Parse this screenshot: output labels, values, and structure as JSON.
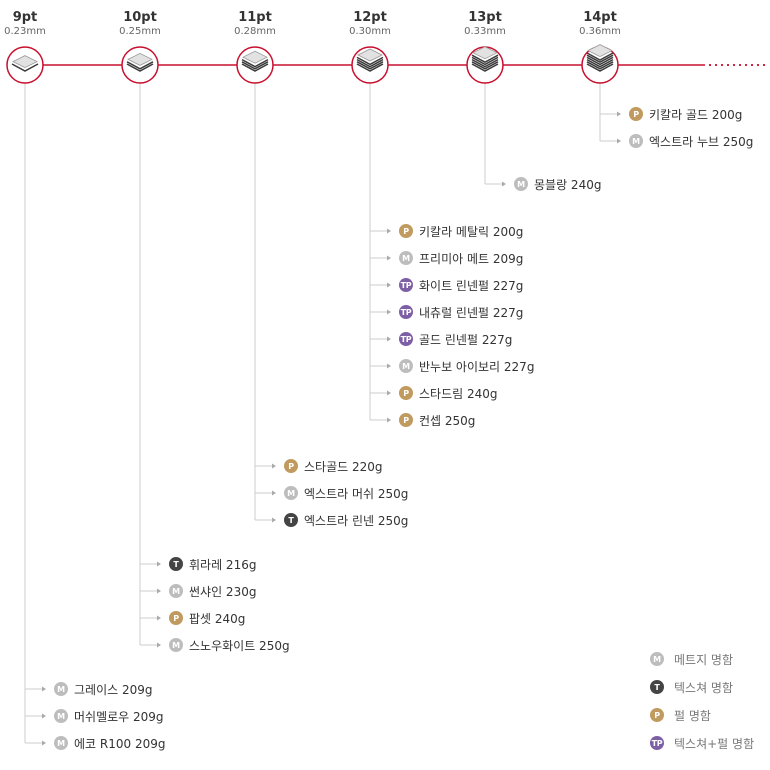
{
  "thicknesses": [
    {
      "pt": "9pt",
      "mm": "0.23mm",
      "papers": [
        {
          "type": "M",
          "name": "그레이스 209g"
        },
        {
          "type": "M",
          "name": "머쉬멜로우 209g"
        },
        {
          "type": "M",
          "name": "에코 R100 209g"
        }
      ]
    },
    {
      "pt": "10pt",
      "mm": "0.25mm",
      "papers": [
        {
          "type": "T",
          "name": "휘라레 216g"
        },
        {
          "type": "M",
          "name": "썬샤인 230g"
        },
        {
          "type": "P",
          "name": "팝셋 240g"
        },
        {
          "type": "M",
          "name": "스노우화이트 250g"
        }
      ]
    },
    {
      "pt": "11pt",
      "mm": "0.28mm",
      "papers": [
        {
          "type": "P",
          "name": "스타골드 220g"
        },
        {
          "type": "M",
          "name": "엑스트라 머쉬 250g"
        },
        {
          "type": "T",
          "name": "엑스트라 린넨 250g"
        }
      ]
    },
    {
      "pt": "12pt",
      "mm": "0.30mm",
      "papers": [
        {
          "type": "P",
          "name": "키칼라 메탈릭 200g"
        },
        {
          "type": "M",
          "name": "프리미아 메트 209g"
        },
        {
          "type": "TP",
          "name": "화이트 린넨펄 227g"
        },
        {
          "type": "TP",
          "name": "내츄럴 린넨펄 227g"
        },
        {
          "type": "TP",
          "name": "골드 린넨펄 227g"
        },
        {
          "type": "M",
          "name": "반누보 아이보리 227g"
        },
        {
          "type": "P",
          "name": "스타드림 240g"
        },
        {
          "type": "P",
          "name": "컨셉 250g"
        }
      ]
    },
    {
      "pt": "13pt",
      "mm": "0.33mm",
      "papers": [
        {
          "type": "M",
          "name": "몽블랑 240g"
        }
      ]
    },
    {
      "pt": "14pt",
      "mm": "0.36mm",
      "papers": [
        {
          "type": "P",
          "name": "키칼라 골드 200g"
        },
        {
          "type": "M",
          "name": "엑스트라 누브 250g"
        }
      ]
    }
  ],
  "legend": [
    {
      "type": "M",
      "label": "메트지 명함"
    },
    {
      "type": "T",
      "label": "텍스쳐 명함"
    },
    {
      "type": "P",
      "label": "펄 명함"
    },
    {
      "type": "TP",
      "label": "텍스쳐+펄 명함"
    }
  ],
  "badge_colors": {
    "M": "#bdbdbd",
    "T": "#444444",
    "P": "#c09a5e",
    "TP": "#7d5fa6"
  },
  "accent_color": "#c8102e"
}
